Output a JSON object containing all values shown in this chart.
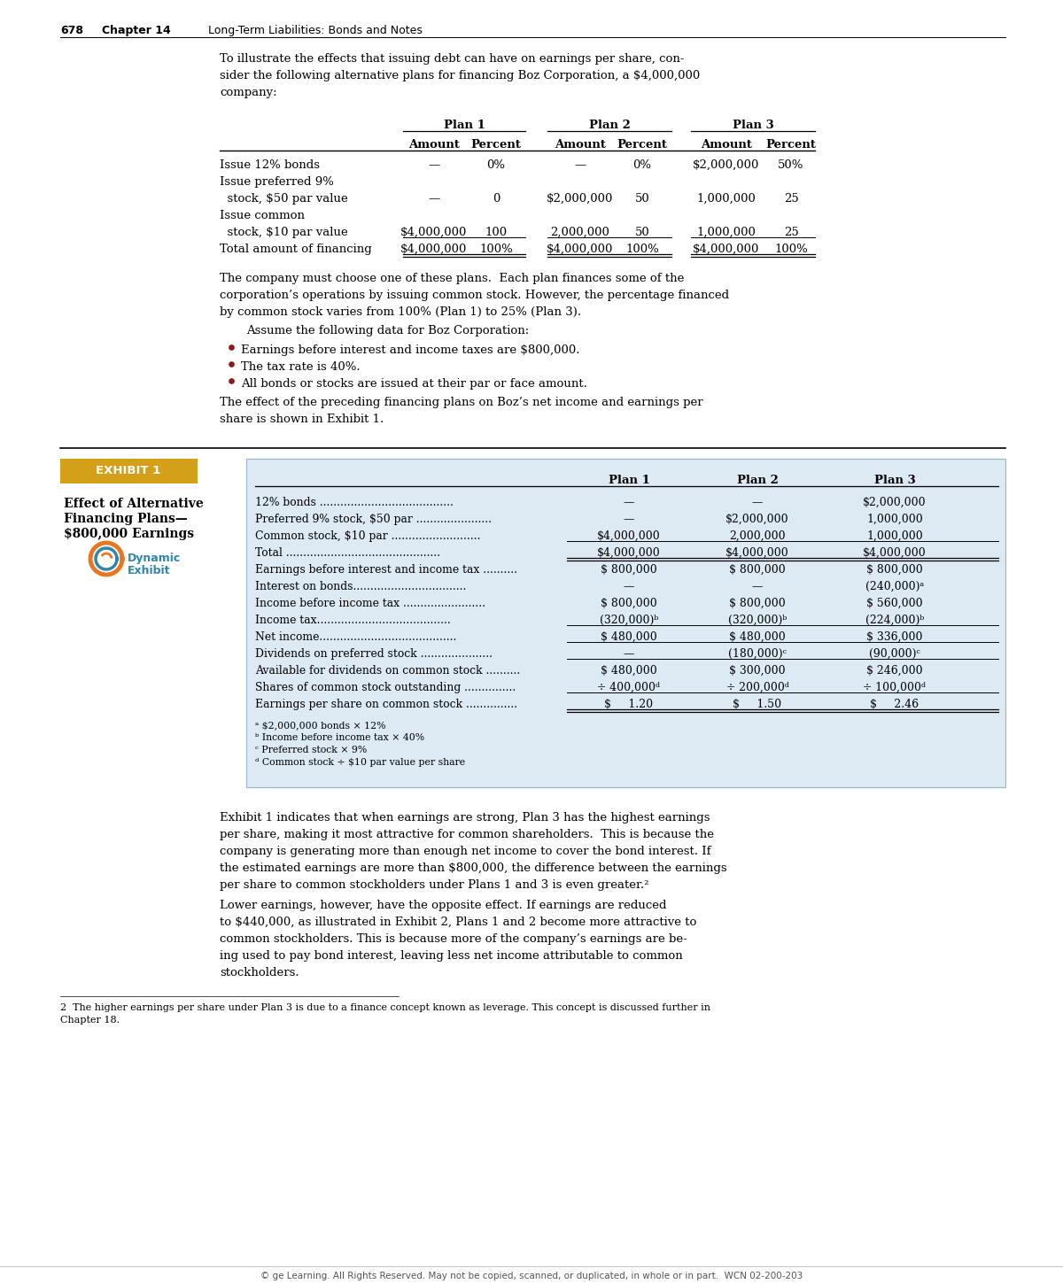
{
  "page_num": "678",
  "chapter": "Chapter 14",
  "chapter_title": "Long-Term Liabilities: Bonds and Notes",
  "bg_color": "#ffffff",
  "top_table": {
    "rows": [
      [
        "Issue 12% bonds",
        "—",
        "0%",
        "—",
        "0%",
        "$2,000,000",
        "50%"
      ],
      [
        "Issue preferred 9%",
        "",
        "",
        "",
        "",
        "",
        ""
      ],
      [
        "  stock, $50 par value",
        "—",
        "0",
        "$2,000,000",
        "50",
        "1,000,000",
        "25"
      ],
      [
        "Issue common",
        "",
        "",
        "",
        "",
        "",
        ""
      ],
      [
        "  stock, $10 par value",
        "$4,000,000",
        "100",
        "2,000,000",
        "50",
        "1,000,000",
        "25"
      ],
      [
        "Total amount of financing",
        "$4,000,000",
        "100%",
        "$4,000,000",
        "100%",
        "$4,000,000",
        "100%"
      ]
    ]
  },
  "bullets": [
    "Earnings before interest and income taxes are $800,000.",
    "The tax rate is 40%.",
    "All bonds or stocks are issued at their par or face amount."
  ],
  "exhibit_label": "EXHIBIT 1",
  "exhibit_title1": "Effect of Alternative",
  "exhibit_title2": "Financing Plans—",
  "exhibit_title3": "$800,000 Earnings",
  "exhibit_bg": "#dde9f3",
  "exhibit_label_bg": "#d4a017",
  "exhibit_table": {
    "rows": [
      [
        "12% bonds .......................................",
        "—",
        "—",
        "$2,000,000"
      ],
      [
        "Preferred 9% stock, $50 par ......................",
        "—",
        "$2,000,000",
        "1,000,000"
      ],
      [
        "Common stock, $10 par ..........................",
        "$4,000,000",
        "2,000,000",
        "1,000,000"
      ],
      [
        "Total .............................................",
        "$4,000,000",
        "$4,000,000",
        "$4,000,000"
      ],
      [
        "Earnings before interest and income tax ..........",
        "$ 800,000",
        "$ 800,000",
        "$ 800,000"
      ],
      [
        "Interest on bonds.................................",
        "—",
        "—",
        "(240,000)ᵃ"
      ],
      [
        "Income before income tax ........................",
        "$ 800,000",
        "$ 800,000",
        "$ 560,000"
      ],
      [
        "Income tax.......................................",
        "(320,000)ᵇ",
        "(320,000)ᵇ",
        "(224,000)ᵇ"
      ],
      [
        "Net income........................................",
        "$ 480,000",
        "$ 480,000",
        "$ 336,000"
      ],
      [
        "Dividends on preferred stock .....................",
        "—",
        "(180,000)ᶜ",
        "(90,000)ᶜ"
      ],
      [
        "Available for dividends on common stock ..........",
        "$ 480,000",
        "$ 300,000",
        "$ 246,000"
      ],
      [
        "Shares of common stock outstanding ...............",
        "÷ 400,000ᵈ",
        "÷ 200,000ᵈ",
        "÷ 100,000ᵈ"
      ],
      [
        "Earnings per share on common stock ...............",
        "$     1.20",
        "$     1.50",
        "$     2.46"
      ]
    ],
    "footnotes": [
      "ᵃ $2,000,000 bonds × 12%",
      "ᵇ Income before income tax × 40%",
      "ᶜ Preferred stock × 9%",
      "ᵈ Common stock ÷ $10 par value per share"
    ],
    "double_underline_rows": [
      3,
      12
    ],
    "single_underline_rows": [
      2,
      7,
      8,
      9,
      11
    ]
  },
  "para5_lines": [
    "Exhibit 1 indicates that when earnings are strong, Plan 3 has the highest earnings",
    "per share, making it most attractive for common shareholders.  This is because the",
    "company is generating more than enough net income to cover the bond interest. If",
    "the estimated earnings are more than $800,000, the difference between the earnings",
    "per share to common stockholders under Plans 1 and 3 is even greater.²"
  ],
  "para6_lines": [
    "Lower earnings, however, have the opposite effect. If earnings are reduced",
    "to $440,000, as illustrated in Exhibit 2, Plans 1 and 2 become more attractive to",
    "common stockholders. This is because more of the company’s earnings are be-",
    "ing used to pay bond interest, leaving less net income attributable to common",
    "stockholders."
  ],
  "footnote2_line1": "2  The higher earnings per share under Plan 3 is due to a finance concept known as leverage. This concept is discussed further in",
  "footnote2_line2": "Chapter 18.",
  "footer": "© ge Learning. All Rights Reserved. May not be copied, scanned, or duplicated, in whole or in part.  WCN 02-200-203",
  "bullet_color": "#8b1a1a",
  "dyn_orange": "#e87722",
  "dyn_blue": "#2e86ab"
}
